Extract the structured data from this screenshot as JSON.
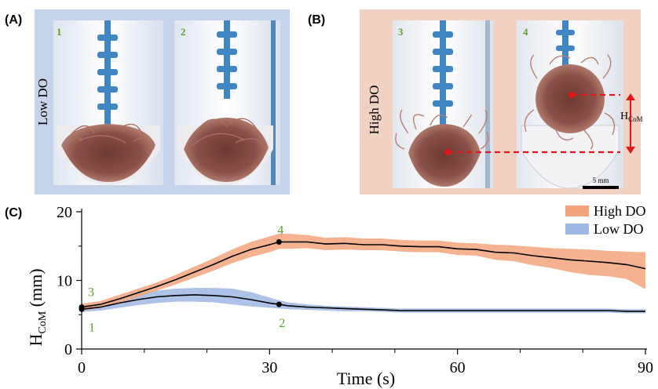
{
  "panel_a": {
    "label": "(A)",
    "side_label": "Low DO",
    "image_numbers": [
      "1",
      "2"
    ],
    "bg_color": "#c6d3ea"
  },
  "panel_b": {
    "label": "(B)",
    "side_label": "High DO",
    "image_numbers": [
      "3",
      "4"
    ],
    "bg_color": "#f1d2c2",
    "hcom_label": "H",
    "hcom_sub": "CoM",
    "scale_bar": "5 mm"
  },
  "panel_c": {
    "label": "(C)"
  },
  "chart_data": {
    "type": "line",
    "xlabel": "Time (s)",
    "ylabel_main": "H",
    "ylabel_sub": "CoM",
    "ylabel_unit": " (mm)",
    "xlim": [
      0,
      90
    ],
    "ylim": [
      0,
      20
    ],
    "xticks": [
      0,
      30,
      60,
      90
    ],
    "xticks_minor": [
      10,
      20,
      40,
      50,
      70,
      80
    ],
    "yticks": [
      0,
      10,
      20
    ],
    "yticks_minor": [
      5,
      15
    ],
    "legend_position": "top-right",
    "series": [
      {
        "name": "High DO",
        "color": "#f2a57c",
        "line_color": "#000000",
        "x": [
          0,
          3,
          6,
          9,
          12,
          15,
          18,
          21,
          24,
          27,
          30,
          31.5,
          33,
          36,
          39,
          42,
          45,
          48,
          51,
          54,
          57,
          60,
          63,
          66,
          69,
          72,
          75,
          78,
          81,
          84,
          87,
          90
        ],
        "mean": [
          6.1,
          6.5,
          7.3,
          8.2,
          9.1,
          10.1,
          11.2,
          12.3,
          13.5,
          14.5,
          15.2,
          15.6,
          15.6,
          15.6,
          15.3,
          15.4,
          15.2,
          15.2,
          15.0,
          14.9,
          14.9,
          14.6,
          14.5,
          14.1,
          14.0,
          13.6,
          13.3,
          13.0,
          12.8,
          12.6,
          12.3,
          11.7
        ],
        "lower": [
          5.6,
          6.0,
          6.7,
          7.6,
          8.5,
          9.4,
          10.4,
          11.4,
          12.5,
          13.4,
          14.1,
          14.6,
          14.6,
          14.7,
          14.4,
          14.5,
          14.4,
          14.4,
          14.2,
          14.1,
          14.1,
          13.7,
          13.6,
          13.0,
          12.8,
          12.2,
          11.8,
          11.2,
          10.8,
          10.6,
          10.2,
          8.7
        ],
        "upper": [
          6.6,
          7.0,
          7.9,
          8.8,
          9.7,
          10.8,
          12.0,
          13.2,
          14.5,
          15.6,
          16.4,
          16.8,
          16.8,
          16.6,
          16.2,
          16.3,
          16.1,
          16.1,
          15.9,
          15.8,
          15.8,
          15.5,
          15.4,
          15.2,
          15.1,
          14.9,
          14.7,
          14.6,
          14.5,
          14.3,
          14.2,
          14.1
        ]
      },
      {
        "name": "Low DO",
        "color": "#9fb7e2",
        "line_color": "#000000",
        "x": [
          0,
          3,
          6,
          9,
          12,
          15,
          18,
          21,
          24,
          27,
          30,
          31.5,
          33,
          36,
          39,
          42,
          45,
          48,
          51,
          54,
          57,
          60,
          63,
          66,
          69,
          72,
          75,
          78,
          81,
          84,
          87,
          90
        ],
        "mean": [
          5.8,
          6.1,
          6.7,
          7.2,
          7.6,
          7.8,
          7.9,
          7.8,
          7.6,
          7.2,
          6.7,
          6.5,
          6.3,
          6.1,
          6.0,
          5.9,
          5.8,
          5.7,
          5.6,
          5.6,
          5.6,
          5.6,
          5.6,
          5.6,
          5.6,
          5.6,
          5.6,
          5.6,
          5.6,
          5.6,
          5.5,
          5.5
        ],
        "lower": [
          5.4,
          5.6,
          6.0,
          6.4,
          6.7,
          6.9,
          6.9,
          6.8,
          6.5,
          6.2,
          6.0,
          5.9,
          5.8,
          5.7,
          5.6,
          5.5,
          5.5,
          5.4,
          5.3,
          5.3,
          5.3,
          5.3,
          5.3,
          5.3,
          5.3,
          5.3,
          5.3,
          5.3,
          5.3,
          5.3,
          5.2,
          5.2
        ],
        "upper": [
          6.2,
          6.6,
          7.3,
          8.0,
          8.5,
          8.8,
          8.9,
          8.9,
          8.8,
          8.3,
          7.5,
          7.1,
          6.8,
          6.5,
          6.3,
          6.2,
          6.1,
          6.0,
          5.9,
          5.9,
          5.9,
          5.9,
          5.9,
          5.9,
          5.9,
          5.9,
          5.9,
          5.9,
          5.9,
          5.9,
          5.8,
          5.8
        ]
      }
    ],
    "annotations": [
      {
        "label": "1",
        "x": 0,
        "y": 5.8,
        "series": "Low DO"
      },
      {
        "label": "2",
        "x": 31.5,
        "y": 6.5,
        "series": "Low DO"
      },
      {
        "label": "3",
        "x": 0,
        "y": 6.1,
        "series": "High DO"
      },
      {
        "label": "4",
        "x": 31.5,
        "y": 15.6,
        "series": "High DO"
      }
    ]
  }
}
